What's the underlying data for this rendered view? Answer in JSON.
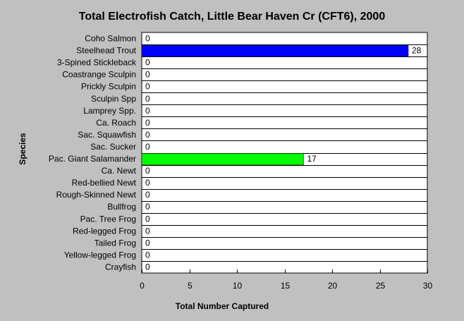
{
  "chart_data": {
    "type": "bar",
    "orientation": "horizontal",
    "title": "Total Electrofish Catch, Little Bear Haven Cr (CFT6), 2000",
    "xlabel": "Total Number Captured",
    "ylabel": "Species",
    "categories": [
      "Coho Salmon",
      "Steelhead Trout",
      "3-Spined Stickleback",
      "Coastrange Sculpin",
      "Prickly Sculpin",
      "Sculpin Spp",
      "Lamprey Spp.",
      "Ca. Roach",
      "Sac. Squawfish",
      "Sac. Sucker",
      "Pac. Giant Salamander",
      "Ca. Newt",
      "Red-bellied Newt",
      "Rough-Skinned Newt",
      "Bullfrog",
      "Pac. Tree Frog",
      "Red-legged Frog",
      "Tailed Frog",
      "Yellow-legged Frog",
      "Crayfish"
    ],
    "values": [
      0,
      28,
      0,
      0,
      0,
      0,
      0,
      0,
      0,
      0,
      17,
      0,
      0,
      0,
      0,
      0,
      0,
      0,
      0,
      0
    ],
    "bar_colors": [
      "#0000ff",
      "#0000ff",
      "#0000ff",
      "#0000ff",
      "#0000ff",
      "#0000ff",
      "#0000ff",
      "#0000ff",
      "#0000ff",
      "#0000ff",
      "#00ff00",
      "#0000ff",
      "#0000ff",
      "#0000ff",
      "#0000ff",
      "#0000ff",
      "#0000ff",
      "#0000ff",
      "#0000ff",
      "#0000ff"
    ],
    "xlim": [
      0,
      30
    ],
    "xticks": [
      0,
      5,
      10,
      15,
      20,
      25,
      30
    ],
    "grid": "horizontal",
    "legend": "none",
    "colors": {
      "background": "#c0c0c0",
      "plot_background": "#ffffff",
      "gridline": "#000000"
    }
  }
}
